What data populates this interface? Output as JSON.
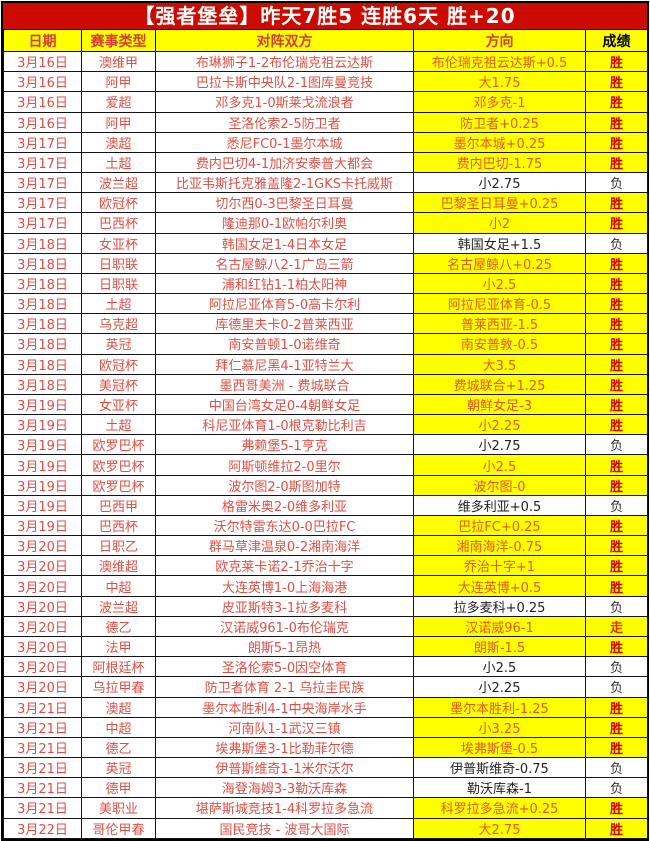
{
  "title": "【强者堡垒】昨天7胜5 连胜6天 胜+20",
  "colors": {
    "banner_bg": "#cc0b00",
    "banner_text": "#ffffff",
    "highlight_bg": "#ffff00",
    "header_text": "#d43c35",
    "body_red_text": "#dd4f44",
    "direction_win_text": "#e2571e",
    "win_text": "#d40000",
    "loss_text": "#333333"
  },
  "table": {
    "columns": [
      "日期",
      "赛事类型",
      "对阵双方",
      "方向",
      "成绩"
    ],
    "rows": [
      {
        "date": "3月16日",
        "league": "澳维甲",
        "match": "布琳狮子1-2布伦瑞克祖云达斯",
        "direction": "布伦瑞克祖云达斯+0.5",
        "result": "胜"
      },
      {
        "date": "3月16日",
        "league": "阿甲",
        "match": "巴拉卡斯中央队2-1图库曼竞技",
        "direction": "大1.75",
        "result": "胜"
      },
      {
        "date": "3月16日",
        "league": "爱超",
        "match": "邓多克1-0斯莱戈流浪者",
        "direction": "邓多克-1",
        "result": "胜"
      },
      {
        "date": "3月16日",
        "league": "阿甲",
        "match": "圣洛伦索2-5防卫者",
        "direction": "防卫者+0.25",
        "result": "胜"
      },
      {
        "date": "3月17日",
        "league": "澳超",
        "match": "悉尼FC0-1墨尔本城",
        "direction": "墨尔本城+0.25",
        "result": "胜"
      },
      {
        "date": "3月17日",
        "league": "土超",
        "match": "费内巴切4-1加济安泰普大都会",
        "direction": "费内巴切-1.75",
        "result": "胜"
      },
      {
        "date": "3月17日",
        "league": "波兰超",
        "match": "比亚韦斯托克雅盖隆2-1GKS卡托威斯",
        "direction": "小2.75",
        "result": "负"
      },
      {
        "date": "3月17日",
        "league": "欧冠杯",
        "match": "切尔西0-3巴黎圣日耳曼",
        "direction": "巴黎圣日耳曼+0.25",
        "result": "胜"
      },
      {
        "date": "3月17日",
        "league": "巴西杯",
        "match": "隆迪那0-1欧帕尔利奥",
        "direction": "小2",
        "result": "胜"
      },
      {
        "date": "3月18日",
        "league": "女亚杯",
        "match": "韩国女足1-4日本女足",
        "direction": "韩国女足+1.5",
        "result": "负"
      },
      {
        "date": "3月18日",
        "league": "日职联",
        "match": "名古屋鲸八2-1广岛三箭",
        "direction": "名古屋鲸八+0.25",
        "result": "胜"
      },
      {
        "date": "3月18日",
        "league": "日职联",
        "match": "浦和红钻1-1柏太阳神",
        "direction": "小2.5",
        "result": "胜"
      },
      {
        "date": "3月18日",
        "league": "土超",
        "match": "阿拉尼亚体育5-0高卡尔利",
        "direction": "阿拉尼亚体育-0.5",
        "result": "胜"
      },
      {
        "date": "3月18日",
        "league": "乌克超",
        "match": "库德里夫卡0-2普莱西亚",
        "direction": "普莱西亚-1.5",
        "result": "胜"
      },
      {
        "date": "3月18日",
        "league": "英冠",
        "match": "南安普顿1-0诺维奇",
        "direction": "南安普敦-0.5",
        "result": "胜"
      },
      {
        "date": "3月18日",
        "league": "欧冠杯",
        "match": "拜仁慕尼黑4-1亚特兰大",
        "direction": "大3.5",
        "result": "胜"
      },
      {
        "date": "3月18日",
        "league": "美冠杯",
        "match": "墨西哥美洲 - 费城联合",
        "direction": "费城联合+1.25",
        "result": "胜"
      },
      {
        "date": "3月19日",
        "league": "女亚杯",
        "match": "中国台湾女足0-4朝鲜女足",
        "direction": "朝鲜女足-3",
        "result": "胜"
      },
      {
        "date": "3月19日",
        "league": "土超",
        "match": "科尼亚体育1-0根克勒比利吉",
        "direction": "小2.25",
        "result": "胜"
      },
      {
        "date": "3月19日",
        "league": "欧罗巴杯",
        "match": "弗赖堡5-1亨克",
        "direction": "小2.75",
        "result": "负"
      },
      {
        "date": "3月19日",
        "league": "欧罗巴杯",
        "match": "阿斯顿维拉2-0里尔",
        "direction": "小2.5",
        "result": "胜"
      },
      {
        "date": "3月19日",
        "league": "欧罗巴杯",
        "match": "波尔图2-0斯图加特",
        "direction": "波尔图-0",
        "result": "胜"
      },
      {
        "date": "3月19日",
        "league": "巴西甲",
        "match": "格雷米奥2-0维多利亚",
        "direction": "维多利亚+0.5",
        "result": "负"
      },
      {
        "date": "3月19日",
        "league": "巴西杯",
        "match": "沃尔特雷东达0-0巴拉FC",
        "direction": "巴拉FC+0.25",
        "result": "胜"
      },
      {
        "date": "3月20日",
        "league": "日职乙",
        "match": "群马草津温泉0-2湘南海洋",
        "direction": "湘南海洋-0.75",
        "result": "胜"
      },
      {
        "date": "3月20日",
        "league": "澳维超",
        "match": "欧克莱卡诺2-1乔治十字",
        "direction": "乔治十字+1",
        "result": "胜"
      },
      {
        "date": "3月20日",
        "league": "中超",
        "match": "大连英博1-0上海海港",
        "direction": "大连英博+0.5",
        "result": "胜"
      },
      {
        "date": "3月20日",
        "league": "波兰超",
        "match": "皮亚斯特3-1拉多麦科",
        "direction": "拉多麦科+0.25",
        "result": "负"
      },
      {
        "date": "3月20日",
        "league": "德乙",
        "match": "汉诺威961-0布伦瑞克",
        "direction": "汉诺威96-1",
        "result": "走"
      },
      {
        "date": "3月20日",
        "league": "法甲",
        "match": "朗斯5-1昂热",
        "direction": "朗斯-1.5",
        "result": "胜"
      },
      {
        "date": "3月20日",
        "league": "阿根廷杯",
        "match": "圣洛伦索5-0因空体育",
        "direction": "小2.5",
        "result": "负"
      },
      {
        "date": "3月20日",
        "league": "乌拉甲春",
        "match": "防卫者体育 2-1 乌拉圭民族",
        "direction": "小2.25",
        "result": "负"
      },
      {
        "date": "3月21日",
        "league": "澳超",
        "match": "墨尔本胜利4-1中央海岸水手",
        "direction": "墨尔本胜利-1.25",
        "result": "胜"
      },
      {
        "date": "3月21日",
        "league": "中超",
        "match": "河南队1-1武汉三镇",
        "direction": "小3.25",
        "result": "胜"
      },
      {
        "date": "3月21日",
        "league": "德乙",
        "match": "埃弗斯堡3-1比勒菲尔德",
        "direction": "埃弗斯堡-0.5",
        "result": "胜"
      },
      {
        "date": "3月21日",
        "league": "英冠",
        "match": "伊普斯维奇1-1米尔沃尔",
        "direction": "伊普斯维奇-0.75",
        "result": "负"
      },
      {
        "date": "3月21日",
        "league": "德甲",
        "match": "海登海姆3-3勒沃库森",
        "direction": "勒沃库森-1",
        "result": "负"
      },
      {
        "date": "3月21日",
        "league": "美职业",
        "match": "堪萨斯城竞技1-4科罗拉多急流",
        "direction": "科罗拉多急流+0.25",
        "result": "胜"
      },
      {
        "date": "3月22日",
        "league": "哥伦甲春",
        "match": "国民竞技 - 波哥大国际",
        "direction": "大2.75",
        "result": "胜"
      }
    ]
  }
}
